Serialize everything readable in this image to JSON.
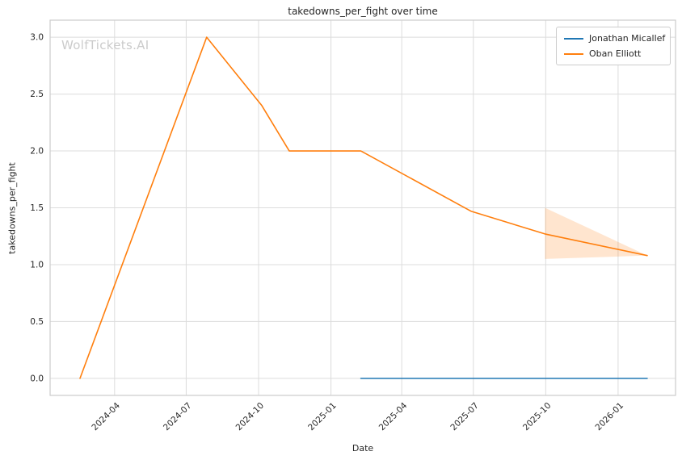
{
  "chart_data": {
    "type": "line",
    "title": "takedowns_per_fight over time",
    "xlabel": "Date",
    "ylabel": "takedowns_per_fight",
    "watermark": "WolfTickets.AI",
    "legend_position": "upper right",
    "grid": true,
    "x_ticks": [
      "2024-04",
      "2024-07",
      "2024-10",
      "2025-01",
      "2025-04",
      "2025-07",
      "2025-10",
      "2026-01"
    ],
    "y_ticks": [
      "0.0",
      "0.5",
      "1.0",
      "1.5",
      "2.0",
      "2.5",
      "3.0"
    ],
    "xlim": [
      "2024-01-10",
      "2026-03-15"
    ],
    "ylim": [
      -0.15,
      3.15
    ],
    "colors": {
      "grid": "#dcdcdc",
      "spine": "#cccccc",
      "text": "#262626",
      "watermark": "#cbcbcb"
    },
    "series": [
      {
        "name": "Jonathan Micallef",
        "color": "#1f77b4",
        "points": [
          {
            "x": "2025-02-08",
            "y": 0.0
          },
          {
            "x": "2026-02-07",
            "y": 0.0
          }
        ]
      },
      {
        "name": "Oban Elliott",
        "color": "#ff7f0e",
        "points": [
          {
            "x": "2024-02-17",
            "y": 0.0
          },
          {
            "x": "2024-07-27",
            "y": 3.0
          },
          {
            "x": "2024-10-05",
            "y": 2.4
          },
          {
            "x": "2024-11-09",
            "y": 2.0
          },
          {
            "x": "2025-02-08",
            "y": 2.0
          },
          {
            "x": "2025-06-28",
            "y": 1.47
          },
          {
            "x": "2025-09-30",
            "y": 1.27
          },
          {
            "x": "2026-02-07",
            "y": 1.08
          }
        ],
        "band": [
          {
            "x": "2025-09-30",
            "lo": 1.05,
            "hi": 1.5
          },
          {
            "x": "2026-02-07",
            "lo": 1.08,
            "hi": 1.08
          }
        ]
      }
    ]
  }
}
